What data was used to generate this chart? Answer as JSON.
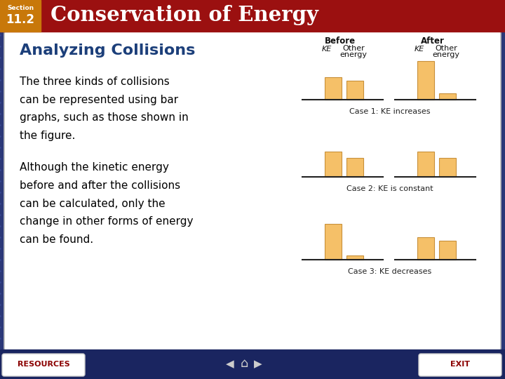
{
  "header_bg_color": "#9B1010",
  "header_section_bg": "#C8780A",
  "header_title": "Conservation of Energy",
  "header_title_color": "#FFFFFF",
  "header_section_color": "#FFFFFF",
  "main_bg_color": "#2B3878",
  "card_bg_color": "#FFFFFF",
  "subtitle": "Analyzing Collisions",
  "subtitle_color": "#1C3F7A",
  "body_text_1": "The three kinds of collisions\ncan be represented using bar\ngraphs, such as those shown in\nthe figure.",
  "body_text_2": "Although the kinetic energy\nbefore and after the collisions\ncan be calculated, only the\nchange in other forms of energy\ncan be found.",
  "body_text_color": "#000000",
  "bar_color": "#F5C068",
  "bar_outline_color": "#C8903A",
  "case1_before": [
    0.52,
    0.43
  ],
  "case1_after": [
    0.88,
    0.14
  ],
  "case2_before": [
    0.58,
    0.43
  ],
  "case2_after": [
    0.58,
    0.43
  ],
  "case3_before": [
    0.82,
    0.1
  ],
  "case3_after": [
    0.52,
    0.43
  ],
  "case_labels": [
    "Case 1: KE increases",
    "Case 2: KE is constant",
    "Case 3: KE decreases"
  ],
  "footer_bg": "#1A2560",
  "resources_text": "RESOURCES",
  "exit_text": "EXIT",
  "nav_color": "#FFFFFF",
  "grid_dot_color": "#3A4A9A"
}
